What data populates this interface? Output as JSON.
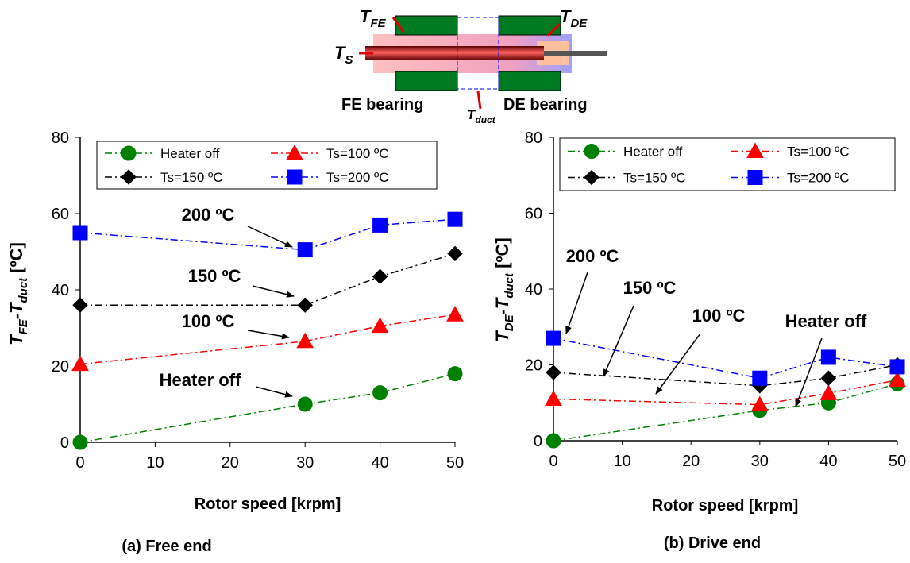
{
  "diagram": {
    "t_fe": [
      "T",
      "FE"
    ],
    "t_de": [
      "T",
      "DE"
    ],
    "t_s": [
      "T",
      "S"
    ],
    "t_duct": [
      "T",
      "duct"
    ],
    "fe_bearing": "FE bearing",
    "de_bearing": "DE bearing"
  },
  "chart_data": [
    {
      "type": "line",
      "caption": "(a) Free end",
      "x_label": "Rotor speed [krpm]",
      "y_label": [
        "T",
        "FE",
        "-T",
        "duct",
        " [ºC]"
      ],
      "x": [
        0,
        30,
        40,
        50
      ],
      "xlim": [
        0,
        50
      ],
      "xticks": [
        0,
        10,
        20,
        30,
        40,
        50
      ],
      "ylim": [
        0,
        80
      ],
      "yticks": [
        0,
        20,
        40,
        60,
        80
      ],
      "series": [
        {
          "name": "Heater off",
          "color": "#008000",
          "marker": "circle",
          "values": [
            0,
            10,
            13,
            18
          ]
        },
        {
          "name": "Ts=100 ºC",
          "color": "#ff0000",
          "marker": "triangle",
          "values": [
            20.5,
            26.5,
            30.5,
            33.5
          ]
        },
        {
          "name": "Ts=150 ºC",
          "color": "#000000",
          "marker": "diamond",
          "values": [
            36,
            36,
            43.5,
            49.5
          ]
        },
        {
          "name": "Ts=200 ºC",
          "color": "#0000ff",
          "marker": "square",
          "values": [
            55,
            50.5,
            57,
            58.5
          ]
        }
      ],
      "annotations": [
        "200 ºC",
        "150 ºC",
        "100 ºC",
        "Heater off"
      ]
    },
    {
      "type": "line",
      "caption": "(b) Drive end",
      "x_label": "Rotor speed [krpm]",
      "y_label": [
        "T",
        "DE",
        "-T",
        "duct",
        " [ºC]"
      ],
      "x": [
        0,
        30,
        40,
        50
      ],
      "xlim": [
        0,
        50
      ],
      "xticks": [
        0,
        10,
        20,
        30,
        40,
        50
      ],
      "ylim": [
        0,
        80
      ],
      "yticks": [
        0,
        20,
        40,
        60,
        80
      ],
      "series": [
        {
          "name": "Heater off",
          "color": "#008000",
          "marker": "circle",
          "values": [
            0,
            8,
            10,
            15
          ]
        },
        {
          "name": "Ts=100 ºC",
          "color": "#ff0000",
          "marker": "triangle",
          "values": [
            11,
            9.5,
            12.5,
            16
          ]
        },
        {
          "name": "Ts=150 ºC",
          "color": "#000000",
          "marker": "diamond",
          "values": [
            18,
            14.5,
            16.5,
            20
          ]
        },
        {
          "name": "Ts=200 ºC",
          "color": "#0000ff",
          "marker": "square",
          "values": [
            27,
            16.5,
            22,
            19.5
          ]
        }
      ],
      "annotations": [
        "200 ºC",
        "150 ºC",
        "100 ºC",
        "Heater off"
      ]
    }
  ]
}
